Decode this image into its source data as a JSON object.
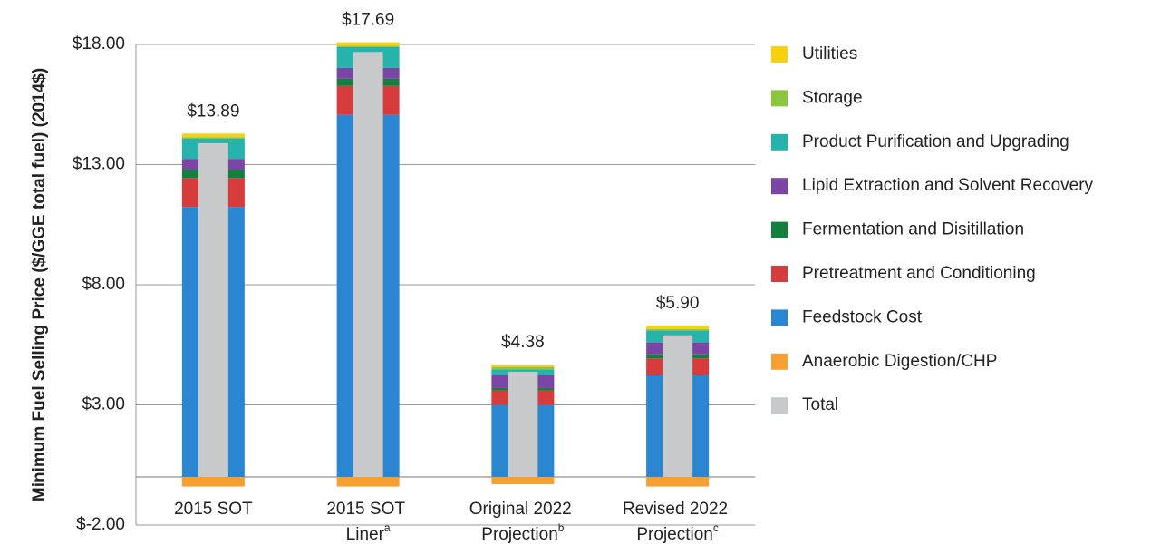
{
  "chart_data": {
    "type": "stacked_bar",
    "ylabel": "Minimum Fuel Selling Price ($/GGE total fuel) (2014$)",
    "categories": [
      "2015 SOT",
      "2015 SOT Liner",
      "Original 2022 Projection",
      "Revised 2022 Projection"
    ],
    "category_superscripts": [
      null,
      "a",
      "b",
      "c"
    ],
    "ylim": [
      -2,
      18
    ],
    "yticks": [
      {
        "value": -2,
        "label": "$-2.00"
      },
      {
        "value": 3,
        "label": "$3.00"
      },
      {
        "value": 8,
        "label": "$8.00"
      },
      {
        "value": 13,
        "label": "$13.00"
      },
      {
        "value": 18,
        "label": "$18.00"
      }
    ],
    "grid": true,
    "legend": "right",
    "series": [
      {
        "name": "Utilities",
        "color": "#f5d10f",
        "values": [
          0.15,
          0.15,
          0.1,
          0.15
        ]
      },
      {
        "name": "Storage",
        "color": "#8cc63f",
        "values": [
          0.05,
          0.05,
          0.1,
          0.05
        ]
      },
      {
        "name": "Product Purification and Upgrading",
        "color": "#26b3ab",
        "values": [
          0.85,
          0.87,
          0.23,
          0.5
        ]
      },
      {
        "name": "Lipid Extraction and Solvent Recovery",
        "color": "#7b45a6",
        "values": [
          0.45,
          0.45,
          0.55,
          0.5
        ]
      },
      {
        "name": "Fermentation and Disitillation",
        "color": "#147f3e",
        "values": [
          0.35,
          0.3,
          0.1,
          0.17
        ]
      },
      {
        "name": "Pretreatment and Conditioning",
        "color": "#d63c3c",
        "values": [
          1.2,
          1.2,
          0.6,
          0.68
        ]
      },
      {
        "name": "Feedstock Cost",
        "color": "#2a86d1",
        "values": [
          11.24,
          15.07,
          3.0,
          4.25
        ]
      },
      {
        "name": "Anaerobic Digestion/CHP",
        "color": "#f5a031",
        "values": [
          -0.4,
          -0.4,
          -0.3,
          -0.4
        ]
      },
      {
        "name": "Total",
        "color": "#c8c9cb",
        "values": [
          13.89,
          17.69,
          4.38,
          5.9
        ],
        "value_labels": [
          "$13.89",
          "$17.69",
          "$4.38",
          "$5.90"
        ]
      }
    ]
  }
}
